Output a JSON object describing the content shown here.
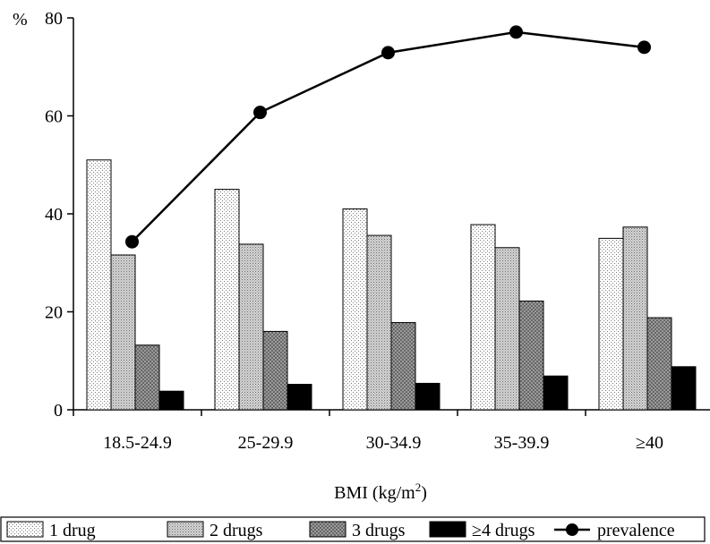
{
  "chart_data": {
    "type": "bar",
    "title": "",
    "ylabel": "%",
    "xlabel": "BMI (kg/m",
    "xlabel_sup": "2",
    "xlabel_close": ")",
    "ylim": [
      0,
      80
    ],
    "yticks": [
      "0",
      "20",
      "40",
      "60",
      "80"
    ],
    "categories": [
      "18.5-24.9",
      "25-29.9",
      "30-34.9",
      "35-39.9",
      "≥40"
    ],
    "series": [
      {
        "name": "1 drug",
        "kind": "bar",
        "pattern": "dots-light",
        "values": [
          51,
          45,
          41,
          37.8,
          35
        ]
      },
      {
        "name": "2 drugs",
        "kind": "bar",
        "pattern": "dots-medium",
        "values": [
          31.6,
          33.8,
          35.6,
          33.1,
          37.3
        ]
      },
      {
        "name": "3 drugs",
        "kind": "bar",
        "pattern": "crosshatch",
        "values": [
          13.2,
          16,
          17.8,
          22.2,
          18.8
        ]
      },
      {
        "name": "≥4 drugs",
        "kind": "bar",
        "pattern": "solid",
        "values": [
          3.8,
          5.2,
          5.4,
          6.9,
          8.8
        ]
      },
      {
        "name": "prevalence",
        "kind": "line",
        "values": [
          34.3,
          60.7,
          72.9,
          77.1,
          74
        ]
      }
    ],
    "legend_position": "bottom"
  }
}
